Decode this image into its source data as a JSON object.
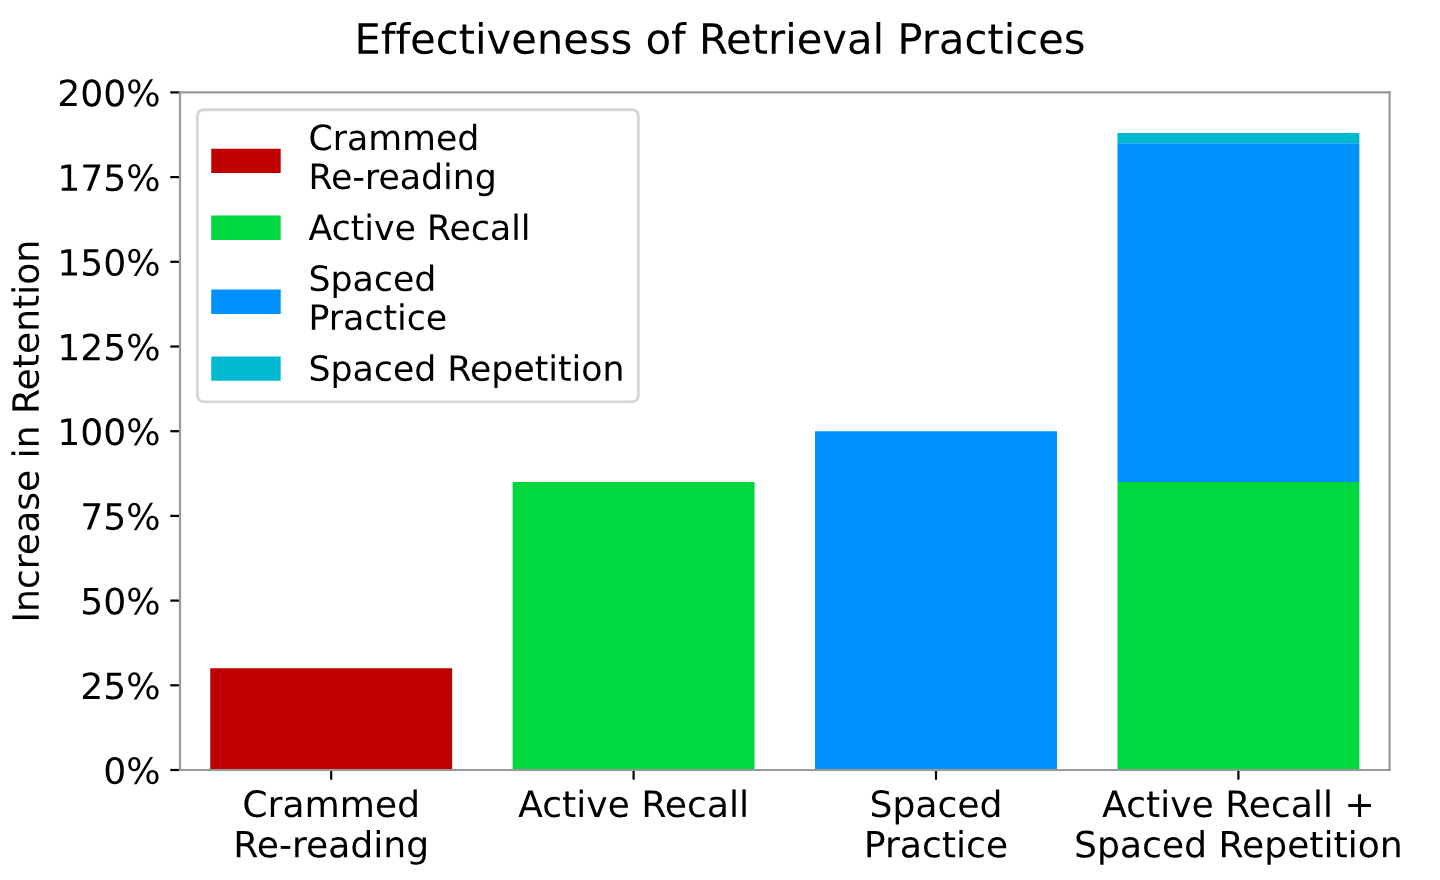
{
  "chart_data": {
    "type": "bar",
    "title": "Effectiveness of Retrieval Practices",
    "ylabel": "Increase in Retention",
    "categories": [
      "Crammed\nRe-reading",
      "Active Recall",
      "Spaced\nPractice",
      "Active Recall +\nSpaced Repetition"
    ],
    "stacked": true,
    "series": [
      {
        "name": "Crammed\nRe-reading",
        "color": "#c00000",
        "values": [
          30,
          null,
          null,
          null
        ]
      },
      {
        "name": "Active Recall",
        "color": "#00d840",
        "values": [
          null,
          85,
          null,
          85
        ]
      },
      {
        "name": "Spaced\nPractice",
        "color": "#0090ff",
        "values": [
          null,
          null,
          100,
          100
        ]
      },
      {
        "name": "Spaced Repetition",
        "color": "#00b8d0",
        "values": [
          null,
          null,
          null,
          3
        ]
      }
    ],
    "ylim": [
      0,
      200
    ],
    "yticks": [
      {
        "value": 0,
        "label": "0%"
      },
      {
        "value": 25,
        "label": "25%"
      },
      {
        "value": 50,
        "label": "50%"
      },
      {
        "value": 75,
        "label": "75%"
      },
      {
        "value": 100,
        "label": "100%"
      },
      {
        "value": 125,
        "label": "125%"
      },
      {
        "value": 150,
        "label": "150%"
      },
      {
        "value": 175,
        "label": "175%"
      },
      {
        "value": 200,
        "label": "200%"
      }
    ],
    "grid": false,
    "legend": "top left"
  }
}
